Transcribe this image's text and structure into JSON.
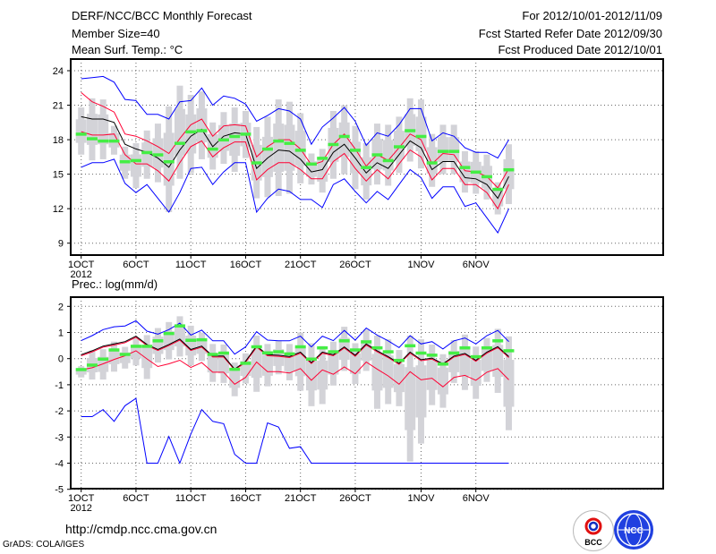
{
  "header": {
    "title": "DERF/NCC/BCC Monthly Forecast",
    "member_size": "Member Size=40",
    "variable": "Mean Surf. Temp.: °C",
    "period": "For 2012/10/01-2012/11/09",
    "start_date": "Fcst Started Refer Date 2012/09/30",
    "produced_date": "Fcst Produced Date 2012/10/01"
  },
  "footer": {
    "url": "http://cmdp.ncc.cma.gov.cn",
    "credit": "GrADS: COLA/IGES",
    "logos": [
      "BCC",
      "NCC"
    ]
  },
  "colors": {
    "envelope": "#0000ff",
    "spread": "#ff0033",
    "mean": "#000000",
    "marker": "#44ee44",
    "box": "#d3d3d8"
  },
  "chart_data": [
    {
      "type": "line",
      "title": "Mean Surf. Temp.: °C",
      "xlabel": "",
      "ylabel": "",
      "ylim": [
        9,
        24
      ],
      "yticks": [
        9,
        12,
        15,
        18,
        21,
        24
      ],
      "x_start": "2012-10-01",
      "n_days": 40,
      "xticks": [
        {
          "day": 0,
          "label": "1OCT"
        },
        {
          "day": 5,
          "label": "6OCT"
        },
        {
          "day": 10,
          "label": "11OCT"
        },
        {
          "day": 15,
          "label": "16OCT"
        },
        {
          "day": 20,
          "label": "21OCT"
        },
        {
          "day": 25,
          "label": "26OCT"
        },
        {
          "day": 31,
          "label": "1NOV"
        },
        {
          "day": 36,
          "label": "6NOV"
        }
      ],
      "year_label": "2012",
      "grid": true,
      "series": [
        {
          "name": "max",
          "color": "#0000ff",
          "values": [
            23.3,
            23.4,
            23.5,
            23.0,
            21.5,
            21.4,
            20.2,
            20.2,
            19.8,
            21.3,
            21.4,
            22.5,
            21.0,
            21.8,
            21.6,
            21.1,
            19.6,
            20.1,
            20.7,
            20.5,
            19.8,
            17.6,
            19.1,
            19.9,
            20.8,
            19.6,
            17.5,
            18.6,
            18.3,
            19.3,
            20.7,
            20.7,
            17.9,
            18.6,
            18.3,
            17.3,
            16.9,
            16.9,
            16.4,
            18.0
          ]
        },
        {
          "name": "min",
          "color": "#0000ff",
          "values": [
            15.6,
            16.0,
            16.0,
            16.3,
            14.2,
            13.4,
            14.1,
            12.9,
            11.7,
            13.4,
            15.5,
            15.6,
            14.1,
            15.2,
            16.0,
            16.0,
            11.7,
            12.9,
            13.7,
            13.5,
            12.8,
            12.8,
            12.1,
            14.1,
            14.6,
            13.5,
            12.5,
            13.5,
            12.8,
            14.1,
            15.4,
            14.7,
            12.9,
            13.9,
            13.9,
            12.2,
            12.5,
            11.2,
            9.9,
            12.0
          ]
        },
        {
          "name": "mean+sd",
          "color": "#ff0033",
          "values": [
            22.1,
            21.3,
            20.9,
            20.4,
            18.5,
            18.3,
            17.9,
            17.4,
            16.8,
            18.1,
            19.3,
            19.8,
            18.3,
            19.2,
            19.3,
            19.2,
            16.5,
            17.4,
            18.0,
            18.0,
            17.2,
            15.8,
            16.1,
            17.6,
            18.5,
            17.2,
            15.7,
            16.7,
            16.2,
            17.3,
            18.5,
            18.0,
            15.9,
            16.8,
            16.7,
            15.3,
            15.2,
            14.8,
            13.8,
            15.5
          ]
        },
        {
          "name": "mean-sd",
          "color": "#ff0033",
          "values": [
            18.7,
            18.4,
            18.4,
            18.5,
            16.7,
            15.9,
            15.9,
            15.3,
            14.4,
            16.0,
            17.4,
            17.9,
            16.5,
            17.3,
            17.8,
            17.8,
            14.5,
            15.4,
            16.0,
            16.0,
            15.4,
            14.6,
            14.6,
            16.1,
            16.8,
            15.5,
            14.4,
            15.4,
            14.6,
            15.9,
            17.1,
            16.5,
            14.5,
            15.5,
            15.5,
            14.1,
            14.1,
            13.4,
            12.0,
            14.1
          ]
        },
        {
          "name": "ensemble mean",
          "color": "#000000",
          "values": [
            20.0,
            19.8,
            19.8,
            19.5,
            17.6,
            17.2,
            16.9,
            16.4,
            15.6,
            17.1,
            18.3,
            18.9,
            17.4,
            18.3,
            18.6,
            18.5,
            15.5,
            16.4,
            17.1,
            17.0,
            16.3,
            15.2,
            15.4,
            16.9,
            17.6,
            16.4,
            15.1,
            16.0,
            15.5,
            16.7,
            17.9,
            17.3,
            15.4,
            16.1,
            16.1,
            14.7,
            14.6,
            14.1,
            12.9,
            14.8
          ]
        }
      ],
      "markers": {
        "name": "median",
        "color": "#44ee44",
        "values": [
          18.5,
          18.1,
          17.9,
          17.9,
          16.1,
          16.2,
          16.9,
          16.7,
          16.1,
          17.7,
          18.7,
          18.8,
          17.2,
          18.0,
          18.3,
          18.5,
          16.0,
          17.2,
          17.9,
          17.7,
          17.1,
          15.9,
          16.4,
          17.6,
          18.3,
          17.1,
          15.6,
          16.7,
          16.2,
          17.4,
          18.8,
          18.3,
          16.0,
          17.0,
          17.0,
          15.6,
          15.2,
          14.8,
          13.7,
          15.4
        ]
      },
      "bars": {
        "name": "ensemble range",
        "hi": [
          20.8,
          21.6,
          21.5,
          19.2,
          17.4,
          17.7,
          18.8,
          19.4,
          20.9,
          22.7,
          21.9,
          22.2,
          19.5,
          20.4,
          20.8,
          20.5,
          19.1,
          20.0,
          21.5,
          21.3,
          20.3,
          16.8,
          17.2,
          20.5,
          21.0,
          19.2,
          17.7,
          19.4,
          19.3,
          20.0,
          21.6,
          21.5,
          18.5,
          19.3,
          19.3,
          17.0,
          17.0,
          16.7,
          14.3,
          17.6
        ],
        "lo": [
          16.7,
          16.2,
          16.3,
          16.7,
          14.6,
          13.8,
          14.6,
          14.3,
          11.7,
          14.6,
          15.1,
          16.3,
          15.4,
          15.9,
          15.2,
          16.4,
          12.9,
          13.0,
          13.1,
          13.3,
          14.2,
          14.1,
          13.4,
          14.6,
          15.0,
          13.7,
          12.8,
          14.1,
          14.0,
          15.1,
          16.1,
          15.5,
          13.9,
          15.0,
          15.0,
          13.4,
          13.3,
          12.8,
          11.5,
          12.4
        ]
      }
    },
    {
      "type": "line",
      "title": "Prec.: log(mm/d)",
      "xlabel": "",
      "ylabel": "",
      "ylim": [
        -5,
        2
      ],
      "yticks": [
        -5,
        -4,
        -3,
        -2,
        -1,
        0,
        1,
        2
      ],
      "x_start": "2012-10-01",
      "n_days": 40,
      "xticks": [
        {
          "day": 0,
          "label": "1OCT"
        },
        {
          "day": 5,
          "label": "6OCT"
        },
        {
          "day": 10,
          "label": "11OCT"
        },
        {
          "day": 15,
          "label": "16OCT"
        },
        {
          "day": 20,
          "label": "21OCT"
        },
        {
          "day": 25,
          "label": "26OCT"
        },
        {
          "day": 31,
          "label": "1NOV"
        },
        {
          "day": 36,
          "label": "6NOV"
        }
      ],
      "year_label": "2012",
      "grid": true,
      "series": [
        {
          "name": "max",
          "color": "#0000ff",
          "values": [
            0.69,
            0.88,
            1.11,
            1.22,
            1.25,
            1.45,
            1.05,
            0.94,
            1.11,
            1.36,
            0.9,
            1.09,
            0.68,
            0.68,
            0.17,
            0.45,
            1.03,
            0.71,
            0.68,
            0.68,
            0.86,
            0.45,
            0.86,
            0.69,
            1.08,
            0.71,
            1.17,
            0.9,
            0.68,
            0.42,
            0.88,
            0.56,
            0.65,
            0.37,
            0.68,
            0.79,
            0.56,
            0.88,
            1.08,
            0.65
          ]
        },
        {
          "name": "min",
          "color": "#0000ff",
          "values": [
            -2.22,
            -2.22,
            -1.95,
            -2.4,
            -1.8,
            -1.52,
            -4,
            -4,
            -2.98,
            -4,
            -2.89,
            -1.95,
            -2.4,
            -2.49,
            -3.66,
            -4,
            -4,
            -2.46,
            -2.62,
            -3.43,
            -3.37,
            -4,
            -4,
            -4,
            -4,
            -4,
            -4,
            -4,
            -4,
            -4,
            -4,
            -4,
            -4,
            -4,
            -4,
            -4,
            -4,
            -4,
            -4,
            -4
          ]
        },
        {
          "name": "mean+sd",
          "color": "#ff0033",
          "values": [
            0.11,
            0.26,
            0.44,
            0.52,
            0.61,
            0.82,
            0.5,
            0.31,
            0.5,
            0.71,
            0.31,
            0.44,
            0.06,
            0.06,
            -0.44,
            -0.14,
            0.44,
            0.11,
            0.09,
            0.04,
            0.21,
            -0.19,
            0.21,
            0.11,
            0.41,
            0.09,
            0.52,
            0.26,
            0.04,
            -0.22,
            0.21,
            -0.08,
            -0.02,
            -0.24,
            0.06,
            0.16,
            -0.1,
            0.21,
            0.42,
            0.04
          ]
        },
        {
          "name": "mean-sd",
          "color": "#ff0033",
          "values": [
            -0.43,
            -0.35,
            -0.2,
            -0.03,
            0.11,
            0.3,
            -0.01,
            -0.3,
            -0.2,
            -0.06,
            -0.34,
            -0.15,
            -0.52,
            -0.52,
            -0.98,
            -0.72,
            -0.13,
            -0.5,
            -0.5,
            -0.55,
            -0.38,
            -0.83,
            -0.43,
            -0.6,
            -0.32,
            -0.58,
            -0.13,
            -0.4,
            -0.66,
            -0.98,
            -0.5,
            -0.81,
            -0.75,
            -1.08,
            -0.72,
            -0.64,
            -0.83,
            -0.52,
            -0.38,
            -0.81
          ]
        },
        {
          "name": "ensemble mean",
          "color": "#000000",
          "values": [
            0.15,
            0.3,
            0.48,
            0.56,
            0.65,
            0.86,
            0.54,
            0.35,
            0.54,
            0.75,
            0.35,
            0.48,
            0.1,
            0.1,
            -0.4,
            -0.1,
            0.48,
            0.15,
            0.13,
            0.08,
            0.25,
            -0.15,
            0.25,
            0.15,
            0.45,
            0.13,
            0.56,
            0.3,
            0.08,
            -0.18,
            0.25,
            -0.04,
            0.02,
            -0.2,
            0.1,
            0.2,
            -0.06,
            0.25,
            0.46,
            0.08
          ]
        }
      ],
      "markers": {
        "name": "median",
        "color": "#44ee44",
        "values": [
          -0.41,
          -0.24,
          -0.01,
          0.34,
          0.17,
          0.48,
          0.48,
          0.69,
          0.97,
          1.26,
          0.71,
          0.73,
          0.17,
          0.22,
          -0.4,
          -0.17,
          0.46,
          0.23,
          0.27,
          0.19,
          0.46,
          -0.01,
          0.42,
          0.27,
          0.69,
          0.34,
          0.65,
          0.42,
          0.27,
          -0.06,
          0.5,
          0.22,
          0.14,
          -0.2,
          0.22,
          0.42,
          0.08,
          0.42,
          0.69,
          0.31
        ]
      },
      "bars": {
        "name": "ensemble range",
        "hi": [
          -0.29,
          0.3,
          0.36,
          0.65,
          0.45,
          0.79,
          0.9,
          1.17,
          1.4,
          1.62,
          1.26,
          1.0,
          0.56,
          0.54,
          -0.15,
          0.2,
          0.88,
          0.56,
          0.68,
          0.56,
          1.0,
          0.59,
          0.48,
          0.65,
          1.22,
          0.59,
          1.11,
          0.88,
          0.74,
          0.33,
          0.88,
          0.74,
          0.54,
          0.17,
          0.71,
          0.92,
          0.46,
          0.79,
          1.14,
          0.85
        ],
        "lo": [
          -0.72,
          -0.8,
          -0.8,
          -0.5,
          -0.38,
          -0.26,
          -0.78,
          -0.15,
          -0.03,
          0.08,
          -0.26,
          -0.09,
          -0.89,
          -0.93,
          -1.44,
          -0.95,
          -1.27,
          -1.06,
          -0.6,
          -0.83,
          -1.23,
          -1.82,
          -1.74,
          -1.03,
          -0.47,
          -0.97,
          -0.47,
          -1.92,
          -1.74,
          -1.82,
          -3.94,
          -3.25,
          -1.78,
          -1.88,
          -0.93,
          -1.2,
          -1.54,
          -0.89,
          -1.31,
          -2.74
        ]
      }
    }
  ]
}
